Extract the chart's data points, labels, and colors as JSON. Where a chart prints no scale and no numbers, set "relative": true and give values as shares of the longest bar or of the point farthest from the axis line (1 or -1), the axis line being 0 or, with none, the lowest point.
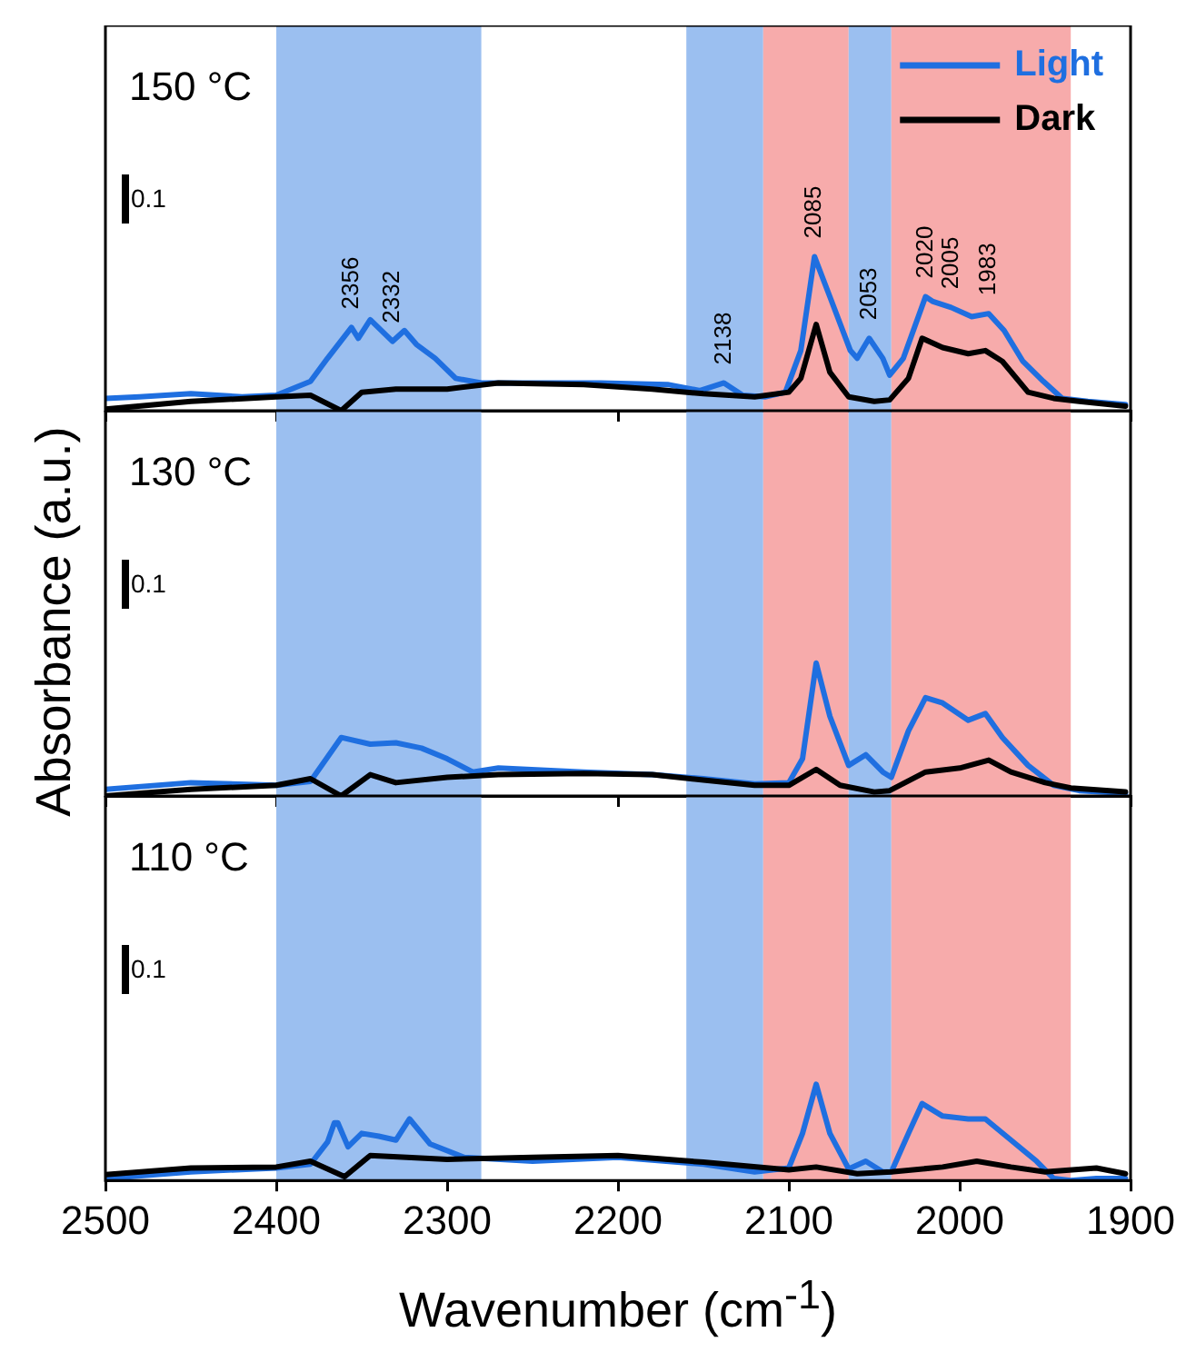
{
  "chart_data": [
    {
      "type": "line",
      "legend": "top right",
      "tick_labels": false,
      "relative": true,
      "xlim": [
        2500,
        1900
      ],
      "xticks": [
        2500,
        2400,
        2300,
        2200,
        2100,
        2000,
        1900
      ],
      "bands": [
        {
          "axis": "x",
          "from": 2400,
          "to": 2280,
          "color": "#9bbff0"
        },
        {
          "axis": "x",
          "from": 2160,
          "to": 2115,
          "color": "#9bbff0"
        },
        {
          "axis": "x",
          "from": 2115,
          "to": 2065,
          "color": "#f7abab"
        },
        {
          "axis": "x",
          "from": 2065,
          "to": 2040,
          "color": "#9bbff0"
        },
        {
          "axis": "x",
          "from": 2040,
          "to": 1935,
          "color": "#f7abab"
        }
      ],
      "annotations": [
        "150 °C",
        "0.1",
        {
          "text": "2356",
          "x": 2356,
          "y": 0.54
        },
        {
          "text": "2332",
          "x": 2332,
          "y": 0.45
        },
        {
          "text": "2138",
          "x": 2138,
          "y": 0.18
        },
        {
          "text": "2085",
          "x": 2085,
          "y": 1
        },
        {
          "text": "2053",
          "x": 2053,
          "y": 0.47
        },
        {
          "text": "2020",
          "x": 2020,
          "y": 0.74
        },
        {
          "text": "2005",
          "x": 2005,
          "y": 0.67
        },
        {
          "text": "1983",
          "x": 1983,
          "y": 0.63
        }
      ],
      "series": [
        {
          "name": "Light",
          "color": "#1f6fe0",
          "x": [
            2500,
            2480,
            2450,
            2420,
            2400,
            2380,
            2370,
            2356,
            2352,
            2345,
            2332,
            2325,
            2318,
            2307,
            2295,
            2280,
            2248,
            2210,
            2171,
            2152,
            2138,
            2127,
            2114,
            2102,
            2093,
            2085,
            2076,
            2064,
            2060,
            2053,
            2045,
            2041,
            2033,
            2020,
            2016,
            2005,
            1993,
            1983,
            1974,
            1963,
            1951,
            1940,
            1925,
            1903
          ],
          "values": [
            0.08,
            0.09,
            0.11,
            0.09,
            0.1,
            0.19,
            0.34,
            0.54,
            0.47,
            0.59,
            0.45,
            0.52,
            0.43,
            0.34,
            0.21,
            0.18,
            0.18,
            0.18,
            0.17,
            0.13,
            0.18,
            0.1,
            0.09,
            0.12,
            0.39,
            1,
            0.74,
            0.39,
            0.34,
            0.47,
            0.34,
            0.23,
            0.34,
            0.74,
            0.71,
            0.67,
            0.61,
            0.63,
            0.52,
            0.32,
            0.19,
            0.08,
            0.06,
            0.04
          ]
        },
        {
          "name": "Dark",
          "color": "#000000",
          "x": [
            2500,
            2450,
            2400,
            2380,
            2362,
            2350,
            2330,
            2300,
            2270,
            2220,
            2180,
            2150,
            2120,
            2100,
            2093,
            2084,
            2076,
            2065,
            2050,
            2041,
            2030,
            2022,
            2010,
            1995,
            1985,
            1975,
            1960,
            1945,
            1930,
            1903
          ],
          "values": [
            0.01,
            0.06,
            0.09,
            0.1,
            0,
            0.12,
            0.14,
            0.14,
            0.18,
            0.17,
            0.14,
            0.11,
            0.09,
            0.12,
            0.21,
            0.56,
            0.25,
            0.09,
            0.06,
            0.07,
            0.21,
            0.47,
            0.41,
            0.37,
            0.39,
            0.32,
            0.12,
            0.08,
            0.06,
            0.03
          ]
        }
      ]
    },
    {
      "type": "line",
      "tick_labels": false,
      "relative": true,
      "ylabel": "Absorbance (a.u.)",
      "xlim": [
        2500,
        1900
      ],
      "xticks": [
        2500,
        2400,
        2300,
        2200,
        2100,
        2000,
        1900
      ],
      "bands": [
        {
          "axis": "x",
          "from": 2400,
          "to": 2280,
          "color": "#9bbff0"
        },
        {
          "axis": "x",
          "from": 2160,
          "to": 2115,
          "color": "#9bbff0"
        },
        {
          "axis": "x",
          "from": 2115,
          "to": 2065,
          "color": "#f7abab"
        },
        {
          "axis": "x",
          "from": 2065,
          "to": 2040,
          "color": "#9bbff0"
        },
        {
          "axis": "x",
          "from": 2040,
          "to": 1935,
          "color": "#f7abab"
        }
      ],
      "annotations": [
        "130 °C",
        "0.1"
      ],
      "series": [
        {
          "color": "#1f6fe0",
          "x": [
            2500,
            2450,
            2400,
            2380,
            2362,
            2345,
            2330,
            2315,
            2300,
            2285,
            2270,
            2220,
            2180,
            2150,
            2120,
            2100,
            2092,
            2084,
            2076,
            2065,
            2055,
            2045,
            2040,
            2030,
            2020,
            2010,
            1995,
            1985,
            1975,
            1960,
            1945,
            1930,
            1903
          ],
          "values": [
            0.05,
            0.1,
            0.08,
            0.11,
            0.44,
            0.39,
            0.4,
            0.36,
            0.28,
            0.18,
            0.21,
            0.18,
            0.16,
            0.13,
            0.09,
            0.1,
            0.28,
            1,
            0.6,
            0.23,
            0.31,
            0.18,
            0.14,
            0.49,
            0.74,
            0.7,
            0.57,
            0.62,
            0.44,
            0.23,
            0.08,
            0.04,
            0.02
          ]
        },
        {
          "color": "#000000",
          "x": [
            2500,
            2450,
            2400,
            2380,
            2362,
            2345,
            2330,
            2300,
            2270,
            2220,
            2180,
            2150,
            2120,
            2100,
            2084,
            2070,
            2050,
            2041,
            2020,
            2000,
            1983,
            1970,
            1950,
            1935,
            1903
          ],
          "values": [
            0,
            0.05,
            0.08,
            0.13,
            0,
            0.16,
            0.1,
            0.14,
            0.16,
            0.17,
            0.16,
            0.12,
            0.08,
            0.08,
            0.2,
            0.08,
            0.03,
            0.04,
            0.18,
            0.21,
            0.27,
            0.18,
            0.1,
            0.06,
            0.03
          ]
        }
      ]
    },
    {
      "type": "line",
      "tick_labels": "x",
      "relative": true,
      "xlabel": "Wavenumber (cm$^{-1}$)",
      "xlim": [
        2500,
        1900
      ],
      "xticks": [
        2500,
        2400,
        2300,
        2200,
        2100,
        2000,
        1900
      ],
      "bands": [
        {
          "axis": "x",
          "from": 2400,
          "to": 2280,
          "color": "#9bbff0"
        },
        {
          "axis": "x",
          "from": 2160,
          "to": 2115,
          "color": "#9bbff0"
        },
        {
          "axis": "x",
          "from": 2115,
          "to": 2065,
          "color": "#f7abab"
        },
        {
          "axis": "x",
          "from": 2065,
          "to": 2040,
          "color": "#9bbff0"
        },
        {
          "axis": "x",
          "from": 2040,
          "to": 1935,
          "color": "#f7abab"
        }
      ],
      "annotations": [
        "110 °C",
        "0.1"
      ],
      "series": [
        {
          "color": "#1f6fe0",
          "x": [
            2500,
            2450,
            2400,
            2380,
            2370,
            2366,
            2364,
            2358,
            2350,
            2340,
            2330,
            2322,
            2310,
            2290,
            2250,
            2200,
            2150,
            2120,
            2100,
            2092,
            2084,
            2076,
            2065,
            2055,
            2045,
            2040,
            2030,
            2022,
            2010,
            1995,
            1985,
            1970,
            1955,
            1945,
            1935,
            1920,
            1903
          ],
          "values": [
            0.02,
            0.09,
            0.13,
            0.17,
            0.4,
            0.6,
            0.6,
            0.35,
            0.49,
            0.46,
            0.42,
            0.64,
            0.38,
            0.24,
            0.2,
            0.24,
            0.17,
            0.09,
            0.13,
            0.49,
            1,
            0.49,
            0.12,
            0.2,
            0.09,
            0.09,
            0.49,
            0.8,
            0.67,
            0.64,
            0.64,
            0.42,
            0.2,
            0.02,
            0,
            0.02,
            0.02
          ]
        },
        {
          "color": "#000000",
          "x": [
            2500,
            2450,
            2400,
            2380,
            2360,
            2345,
            2300,
            2250,
            2200,
            2150,
            2100,
            2084,
            2060,
            2040,
            2010,
            1990,
            1970,
            1950,
            1920,
            1903
          ],
          "values": [
            0.06,
            0.13,
            0.14,
            0.2,
            0.04,
            0.26,
            0.22,
            0.24,
            0.26,
            0.19,
            0.11,
            0.14,
            0.07,
            0.09,
            0.14,
            0.2,
            0.14,
            0.09,
            0.13,
            0.07
          ]
        }
      ]
    }
  ]
}
